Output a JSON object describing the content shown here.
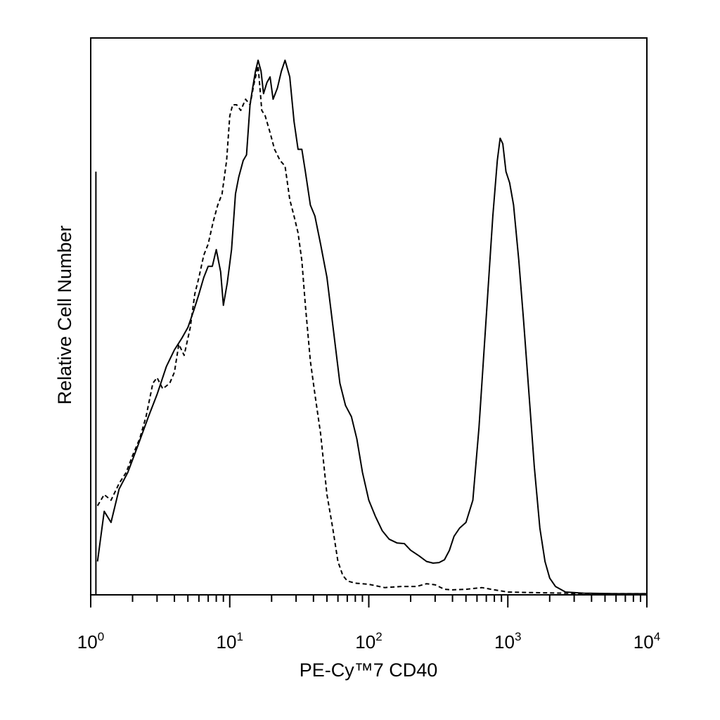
{
  "chart_data": {
    "type": "line",
    "xscale": "log",
    "xlim": [
      1,
      10000
    ],
    "xlabel": "PE-Cy™7 CD40",
    "ylabel": "Relative Cell Number",
    "xticks": [
      {
        "value": 1,
        "base": "10",
        "exp": "0"
      },
      {
        "value": 10,
        "base": "10",
        "exp": "1"
      },
      {
        "value": 100,
        "base": "10",
        "exp": "2"
      },
      {
        "value": 1000,
        "base": "10",
        "exp": "3"
      },
      {
        "value": 10000,
        "base": "10",
        "exp": "4"
      }
    ],
    "ylim": [
      0,
      100
    ],
    "grid": false,
    "series": [
      {
        "style": "solid",
        "color": "#000000",
        "points": [
          [
            1.12,
            6
          ],
          [
            1.25,
            15
          ],
          [
            1.4,
            13
          ],
          [
            1.6,
            19
          ],
          [
            1.85,
            22
          ],
          [
            2.2,
            27
          ],
          [
            2.6,
            32
          ],
          [
            3.0,
            36
          ],
          [
            3.5,
            41
          ],
          [
            4.0,
            44
          ],
          [
            4.5,
            46
          ],
          [
            5.0,
            48
          ],
          [
            5.5,
            51
          ],
          [
            6.0,
            54
          ],
          [
            6.5,
            57
          ],
          [
            7.0,
            59
          ],
          [
            7.5,
            59
          ],
          [
            8.0,
            62
          ],
          [
            8.6,
            58
          ],
          [
            9.0,
            52
          ],
          [
            9.6,
            56
          ],
          [
            10.3,
            62
          ],
          [
            11.0,
            72
          ],
          [
            11.6,
            75
          ],
          [
            12.5,
            78
          ],
          [
            13.2,
            79
          ],
          [
            14.0,
            88
          ],
          [
            14.6,
            91
          ],
          [
            15.3,
            94
          ],
          [
            16.0,
            96
          ],
          [
            16.8,
            94
          ],
          [
            17.5,
            90
          ],
          [
            18.5,
            92
          ],
          [
            19.5,
            93
          ],
          [
            20.5,
            89
          ],
          [
            22.0,
            91
          ],
          [
            23.5,
            94
          ],
          [
            25.0,
            96
          ],
          [
            27.0,
            93
          ],
          [
            29.0,
            85
          ],
          [
            31.0,
            80
          ],
          [
            33.0,
            80
          ],
          [
            35.0,
            76
          ],
          [
            38.0,
            70
          ],
          [
            41.0,
            68
          ],
          [
            45.0,
            63
          ],
          [
            50.0,
            57
          ],
          [
            56.0,
            47
          ],
          [
            62.0,
            38
          ],
          [
            68.0,
            34
          ],
          [
            75.0,
            32
          ],
          [
            82.0,
            28
          ],
          [
            90.0,
            22
          ],
          [
            100.0,
            17
          ],
          [
            112.0,
            14
          ],
          [
            125.0,
            11.5
          ],
          [
            140.0,
            10
          ],
          [
            160.0,
            9.3
          ],
          [
            180.0,
            9.2
          ],
          [
            200.0,
            8
          ],
          [
            230.0,
            7
          ],
          [
            260.0,
            6
          ],
          [
            290.0,
            5.7
          ],
          [
            320.0,
            5.8
          ],
          [
            350.0,
            6.3
          ],
          [
            380.0,
            8
          ],
          [
            410.0,
            10.5
          ],
          [
            450.0,
            12
          ],
          [
            500.0,
            13
          ],
          [
            560.0,
            17
          ],
          [
            620.0,
            30
          ],
          [
            700.0,
            50
          ],
          [
            780.0,
            68
          ],
          [
            840.0,
            78
          ],
          [
            880.0,
            82
          ],
          [
            920.0,
            81
          ],
          [
            970.0,
            76
          ],
          [
            1030.0,
            74
          ],
          [
            1100.0,
            70
          ],
          [
            1200.0,
            60
          ],
          [
            1300.0,
            49
          ],
          [
            1420.0,
            36
          ],
          [
            1550.0,
            23
          ],
          [
            1700.0,
            12
          ],
          [
            1850.0,
            6
          ],
          [
            2000.0,
            3
          ],
          [
            2200.0,
            1.5
          ],
          [
            2600.0,
            0.5
          ],
          [
            3500.0,
            0.3
          ],
          [
            6000.0,
            0.2
          ],
          [
            10000.0,
            0.2
          ]
        ]
      },
      {
        "style": "dashed",
        "color": "#000000",
        "points": [
          [
            1.12,
            16
          ],
          [
            1.25,
            18
          ],
          [
            1.4,
            17
          ],
          [
            1.6,
            20
          ],
          [
            1.8,
            22
          ],
          [
            2.0,
            25
          ],
          [
            2.25,
            28
          ],
          [
            2.5,
            32
          ],
          [
            2.8,
            38
          ],
          [
            3.0,
            39
          ],
          [
            3.3,
            37
          ],
          [
            3.7,
            38
          ],
          [
            4.0,
            40
          ],
          [
            4.3,
            45
          ],
          [
            4.7,
            43
          ],
          [
            5.2,
            48
          ],
          [
            5.6,
            54
          ],
          [
            6.0,
            57
          ],
          [
            6.5,
            61
          ],
          [
            7.0,
            63
          ],
          [
            7.6,
            67
          ],
          [
            8.2,
            70
          ],
          [
            8.8,
            72
          ],
          [
            9.5,
            78
          ],
          [
            10.0,
            86
          ],
          [
            10.5,
            88
          ],
          [
            11.2,
            88
          ],
          [
            12.0,
            87
          ],
          [
            13.0,
            89
          ],
          [
            14.0,
            88
          ],
          [
            15.0,
            92
          ],
          [
            16.0,
            95
          ],
          [
            17.0,
            87
          ],
          [
            18.0,
            86
          ],
          [
            19.5,
            83
          ],
          [
            21.0,
            80
          ],
          [
            23.0,
            78
          ],
          [
            25.0,
            77
          ],
          [
            27.0,
            71
          ],
          [
            29.0,
            68
          ],
          [
            31.0,
            65
          ],
          [
            33.0,
            60
          ],
          [
            35.0,
            52
          ],
          [
            38.0,
            42
          ],
          [
            41.0,
            36
          ],
          [
            45.0,
            29
          ],
          [
            50.0,
            18
          ],
          [
            55.0,
            12
          ],
          [
            60.0,
            6
          ],
          [
            65.0,
            3.5
          ],
          [
            70.0,
            2.5
          ],
          [
            80.0,
            2.1
          ],
          [
            100.0,
            1.9
          ],
          [
            130.0,
            1.3
          ],
          [
            170.0,
            1.5
          ],
          [
            220.0,
            1.5
          ],
          [
            260.0,
            2.0
          ],
          [
            300.0,
            1.8
          ],
          [
            350.0,
            1.0
          ],
          [
            400.0,
            0.9
          ],
          [
            500.0,
            1.0
          ],
          [
            650.0,
            1.3
          ],
          [
            800.0,
            0.9
          ],
          [
            1000.0,
            0.5
          ],
          [
            1500.0,
            0.4
          ],
          [
            2500.0,
            0.3
          ],
          [
            4000.0,
            0.2
          ],
          [
            10000.0,
            0.2
          ]
        ]
      }
    ]
  }
}
